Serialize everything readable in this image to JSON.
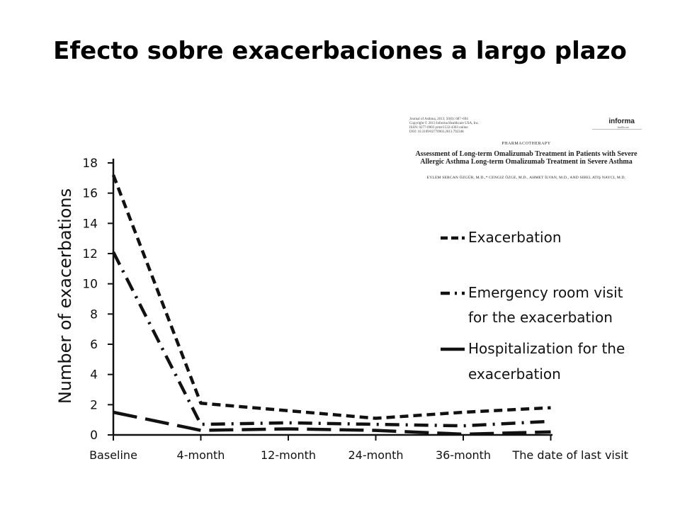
{
  "slide_title": "Efecto sobre exacerbaciones a largo plazo",
  "paper": {
    "meta_lines": [
      "Journal of Asthma, 2013; 50(6): 687–694",
      "Copyright © 2013 Informa Healthcare USA, Inc.",
      "ISSN: 0277-0903 print/1532-4303 online",
      "DOI: 10.3109/02770903.2013.792348"
    ],
    "publisher": "informa",
    "publisher_sub": "healthcare",
    "section": "PHARMACOTHERAPY",
    "title_line1": "Assessment of Long-term Omalizumab Treatment in Patients with Severe",
    "title_line2": "Allergic Asthma Long-term Omalizumab Treatment in Severe Asthma",
    "authors": "EYLEM SERCAN ÖZGÜR, M.D.,* CENGIZ ÖZGE, M.D., AHMET İLVAN, M.D., AND SIBEL ATIŞ NAYCI, M.D."
  },
  "chart_data": {
    "type": "line",
    "title": "",
    "ylabel": "Number of exacerbations",
    "xlabel": "",
    "categories": [
      "Baseline",
      "4-month",
      "12-month",
      "24-month",
      "36-month",
      "The date of last visit"
    ],
    "ylim": [
      0,
      18
    ],
    "yticks": [
      0,
      2,
      4,
      6,
      8,
      10,
      12,
      14,
      16,
      18
    ],
    "series": [
      {
        "name": "Exacerbation",
        "style": "short-dash",
        "values": [
          17.2,
          2.1,
          1.6,
          1.1,
          1.5,
          1.8
        ]
      },
      {
        "name": "Emergency room visit for the exacerbation",
        "style": "dash-dot",
        "values": [
          12.1,
          0.7,
          0.8,
          0.7,
          0.6,
          0.9
        ]
      },
      {
        "name": "Hospitalization for the exacerbation",
        "style": "long-dash",
        "values": [
          1.5,
          0.3,
          0.4,
          0.3,
          0.05,
          0.2
        ]
      }
    ],
    "legend_position": "right",
    "grid": false
  }
}
